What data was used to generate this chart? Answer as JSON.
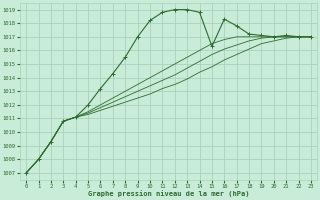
{
  "title": "Graphe pression niveau de la mer (hPa)",
  "bg_color": "#c8ecd8",
  "grid_color": "#aad0be",
  "line_color": "#2d6b2d",
  "xlim": [
    -0.5,
    23.5
  ],
  "ylim": [
    1006.5,
    1019.5
  ],
  "yticks": [
    1007,
    1008,
    1009,
    1010,
    1011,
    1012,
    1013,
    1014,
    1015,
    1016,
    1017,
    1018,
    1019
  ],
  "xticks": [
    0,
    1,
    2,
    3,
    4,
    5,
    6,
    7,
    8,
    9,
    10,
    11,
    12,
    13,
    14,
    15,
    16,
    17,
    18,
    19,
    20,
    21,
    22,
    23
  ],
  "series": [
    {
      "x": [
        0,
        1,
        2,
        3,
        4,
        5,
        6,
        7,
        8,
        9,
        10,
        11,
        12,
        13,
        14,
        15,
        16,
        17,
        18,
        19,
        20,
        21,
        22,
        23
      ],
      "y": [
        1007.0,
        1008.0,
        1009.3,
        1010.8,
        1011.1,
        1012.0,
        1013.2,
        1014.3,
        1015.5,
        1017.0,
        1018.2,
        1018.8,
        1019.0,
        1019.0,
        1018.8,
        1016.3,
        1018.3,
        1017.8,
        1017.2,
        1017.1,
        1017.0,
        1017.1,
        1017.0,
        1017.0
      ],
      "marker": true
    },
    {
      "x": [
        0,
        1,
        2,
        3,
        4,
        5,
        6,
        7,
        8,
        9,
        10,
        11,
        12,
        13,
        14,
        15,
        16,
        17,
        18,
        19,
        20,
        21,
        22,
        23
      ],
      "y": [
        1007.0,
        1008.0,
        1009.3,
        1010.8,
        1011.1,
        1011.3,
        1011.6,
        1011.9,
        1012.2,
        1012.5,
        1012.8,
        1013.2,
        1013.5,
        1013.9,
        1014.4,
        1014.8,
        1015.3,
        1015.7,
        1016.1,
        1016.5,
        1016.7,
        1016.9,
        1017.0,
        1017.0
      ],
      "marker": false
    },
    {
      "x": [
        0,
        1,
        2,
        3,
        4,
        5,
        6,
        7,
        8,
        9,
        10,
        11,
        12,
        13,
        14,
        15,
        16,
        17,
        18,
        19,
        20,
        21,
        22,
        23
      ],
      "y": [
        1007.0,
        1008.0,
        1009.3,
        1010.8,
        1011.1,
        1011.4,
        1011.8,
        1012.2,
        1012.6,
        1013.0,
        1013.4,
        1013.8,
        1014.2,
        1014.7,
        1015.2,
        1015.7,
        1016.1,
        1016.4,
        1016.7,
        1016.9,
        1017.0,
        1017.0,
        1017.0,
        1017.0
      ],
      "marker": false
    },
    {
      "x": [
        0,
        1,
        2,
        3,
        4,
        5,
        6,
        7,
        8,
        9,
        10,
        11,
        12,
        13,
        14,
        15,
        16,
        17,
        18,
        19,
        20,
        21,
        22,
        23
      ],
      "y": [
        1007.0,
        1008.0,
        1009.3,
        1010.8,
        1011.1,
        1011.5,
        1012.0,
        1012.5,
        1013.0,
        1013.5,
        1014.0,
        1014.5,
        1015.0,
        1015.5,
        1016.0,
        1016.5,
        1016.8,
        1017.0,
        1017.0,
        1017.0,
        1017.0,
        1017.0,
        1017.0,
        1017.0
      ],
      "marker": false
    }
  ]
}
